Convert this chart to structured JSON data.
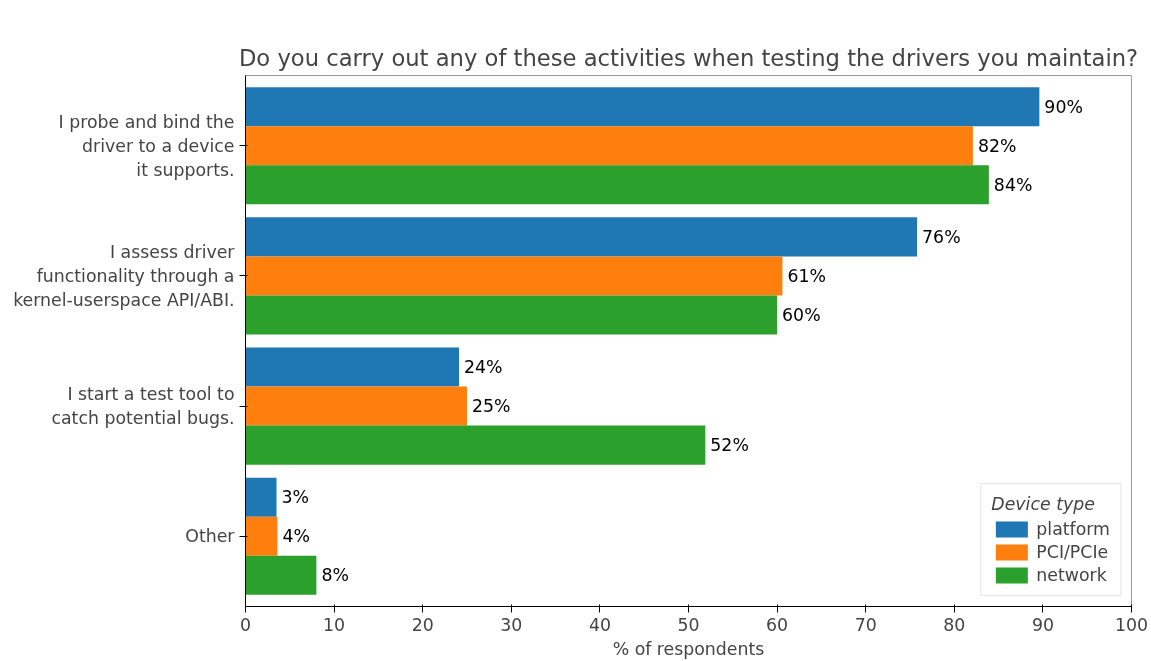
{
  "chart_data": {
    "type": "bar",
    "orientation": "horizontal",
    "title": "Do you carry out any of these activities when testing the drivers you maintain?",
    "xlabel": "% of respondents",
    "categories": [
      "I probe and bind the\ndriver to a device\nit supports.",
      "I assess driver\nfunctionality through a\nkernel-userspace API/ABI.",
      "I start a test tool to\ncatch potential bugs.",
      "Other"
    ],
    "series": [
      {
        "name": "platform",
        "color": "#1f77b4",
        "values": [
          89.6,
          75.8,
          24.1,
          3.5
        ],
        "value_labels": [
          "90%",
          "76%",
          "24%",
          "3%"
        ]
      },
      {
        "name": "PCI/PCIe",
        "color": "#ff7f0e",
        "values": [
          82.1,
          60.6,
          25.0,
          3.6
        ],
        "value_labels": [
          "82%",
          "61%",
          "25%",
          "4%"
        ]
      },
      {
        "name": "network",
        "color": "#2ca02c",
        "values": [
          83.9,
          60.0,
          51.9,
          8.0
        ],
        "value_labels": [
          "84%",
          "60%",
          "52%",
          "8%"
        ]
      }
    ],
    "xlim": [
      0,
      100
    ],
    "xticks": [
      0,
      10,
      20,
      30,
      40,
      50,
      60,
      70,
      80,
      90,
      100
    ],
    "legend": "bottom right",
    "legend_title": "Device type",
    "grid": false
  }
}
